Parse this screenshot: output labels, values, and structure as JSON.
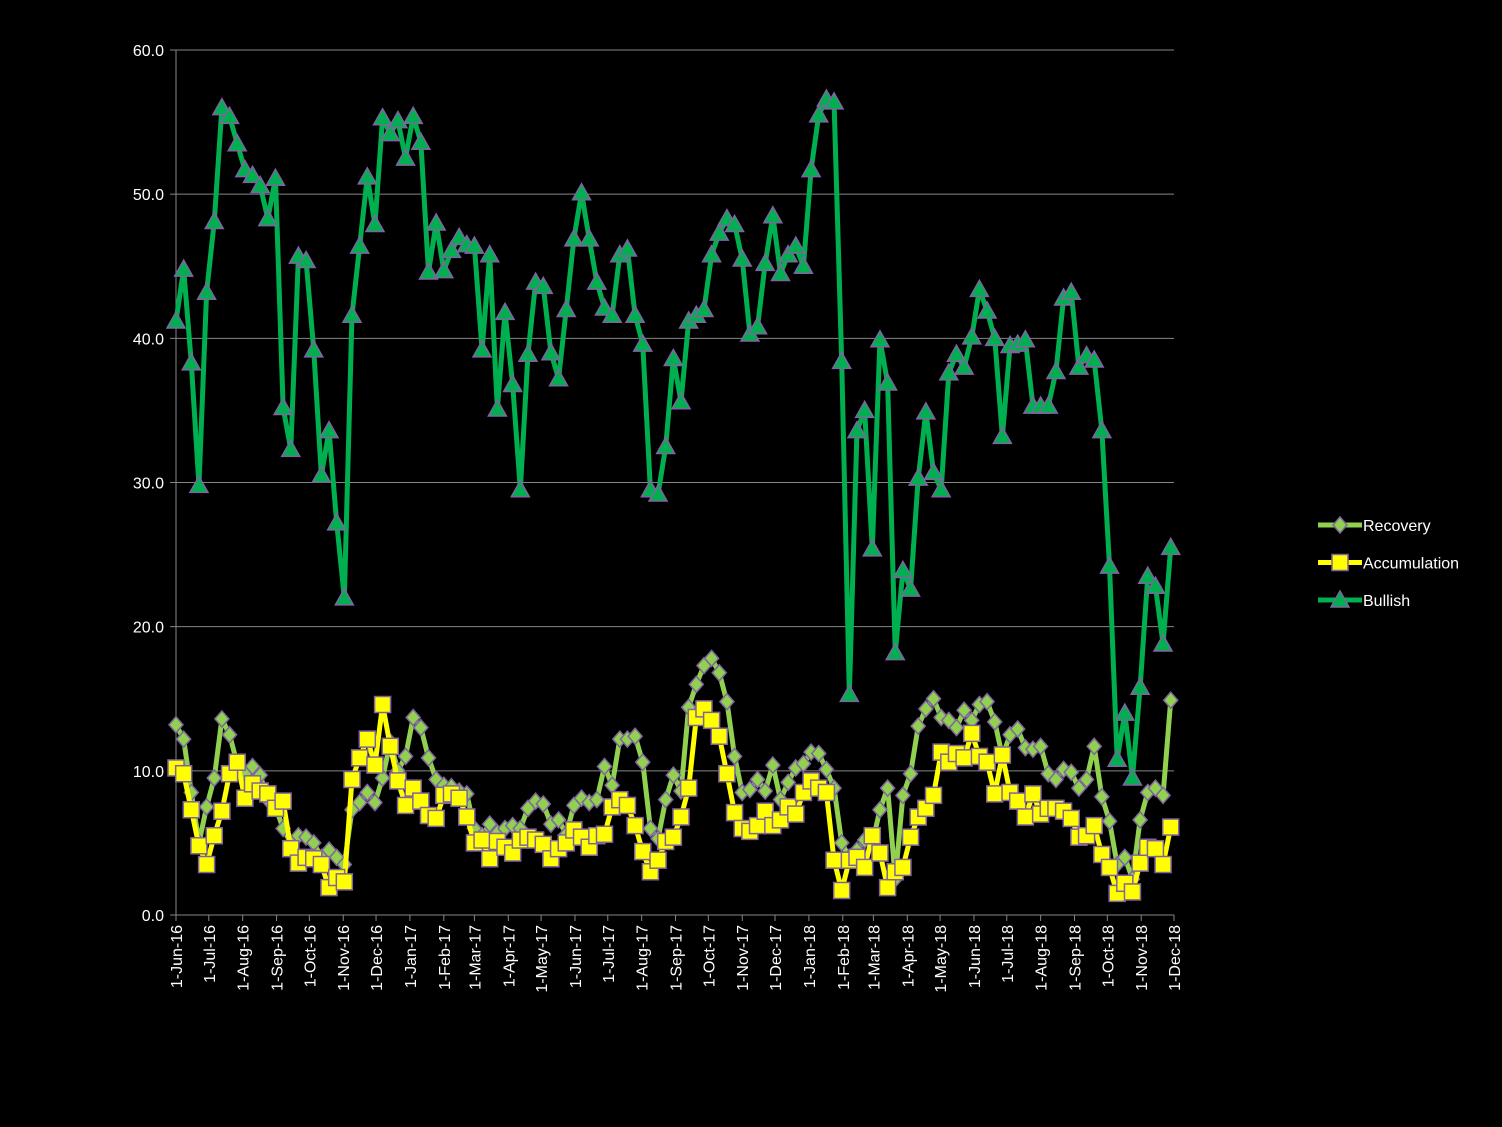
{
  "chart_data": {
    "type": "line",
    "x": [
      "2016-06-01",
      "2016-06-08",
      "2016-06-15",
      "2016-06-22",
      "2016-06-29",
      "2016-07-06",
      "2016-07-13",
      "2016-07-20",
      "2016-07-27",
      "2016-08-03",
      "2016-08-10",
      "2016-08-17",
      "2016-08-24",
      "2016-08-31",
      "2016-09-07",
      "2016-09-14",
      "2016-09-21",
      "2016-09-28",
      "2016-10-05",
      "2016-10-12",
      "2016-10-19",
      "2016-10-26",
      "2016-11-02",
      "2016-11-09",
      "2016-11-16",
      "2016-11-23",
      "2016-11-30",
      "2016-12-07",
      "2016-12-14",
      "2016-12-21",
      "2016-12-28",
      "2017-01-04",
      "2017-01-11",
      "2017-01-18",
      "2017-01-25",
      "2017-02-01",
      "2017-02-08",
      "2017-02-15",
      "2017-02-22",
      "2017-03-01",
      "2017-03-08",
      "2017-03-15",
      "2017-03-22",
      "2017-03-29",
      "2017-04-05",
      "2017-04-12",
      "2017-04-19",
      "2017-04-26",
      "2017-05-03",
      "2017-05-10",
      "2017-05-17",
      "2017-05-24",
      "2017-05-31",
      "2017-06-07",
      "2017-06-14",
      "2017-06-21",
      "2017-06-28",
      "2017-07-05",
      "2017-07-12",
      "2017-07-19",
      "2017-07-26",
      "2017-08-02",
      "2017-08-09",
      "2017-08-16",
      "2017-08-23",
      "2017-08-30",
      "2017-09-06",
      "2017-09-13",
      "2017-09-20",
      "2017-09-27",
      "2017-10-04",
      "2017-10-11",
      "2017-10-18",
      "2017-10-25",
      "2017-11-01",
      "2017-11-08",
      "2017-11-15",
      "2017-11-22",
      "2017-11-29",
      "2017-12-06",
      "2017-12-13",
      "2017-12-20",
      "2017-12-27",
      "2018-01-03",
      "2018-01-10",
      "2018-01-17",
      "2018-01-24",
      "2018-01-31",
      "2018-02-07",
      "2018-02-14",
      "2018-02-21",
      "2018-02-28",
      "2018-03-07",
      "2018-03-14",
      "2018-03-21",
      "2018-03-28",
      "2018-04-04",
      "2018-04-11",
      "2018-04-18",
      "2018-04-25",
      "2018-05-02",
      "2018-05-09",
      "2018-05-16",
      "2018-05-23",
      "2018-05-30",
      "2018-06-06",
      "2018-06-13",
      "2018-06-20",
      "2018-06-27",
      "2018-07-04",
      "2018-07-11",
      "2018-07-18",
      "2018-07-25",
      "2018-08-01",
      "2018-08-08",
      "2018-08-15",
      "2018-08-22",
      "2018-08-29",
      "2018-09-05",
      "2018-09-12",
      "2018-09-19",
      "2018-09-26",
      "2018-10-03",
      "2018-10-10",
      "2018-10-17",
      "2018-10-24",
      "2018-10-31",
      "2018-11-07",
      "2018-11-14",
      "2018-11-21",
      "2018-11-28"
    ],
    "series": [
      {
        "name": "Recovery",
        "color": "#92d050",
        "marker": "diamond",
        "values": [
          13.2,
          12.2,
          8.5,
          5.0,
          7.5,
          9.5,
          13.6,
          12.5,
          10.5,
          9.8,
          10.3,
          9.7,
          8.0,
          7.5,
          6.0,
          5.0,
          5.5,
          5.4,
          5.0,
          4.0,
          4.5,
          4.0,
          3.5,
          7.3,
          7.8,
          8.5,
          7.8,
          9.5,
          12.0,
          10.0,
          11.0,
          13.7,
          13.0,
          10.9,
          9.4,
          9.0,
          8.9,
          8.6,
          8.4,
          6.0,
          5.5,
          6.3,
          5.7,
          6.0,
          6.2,
          6.0,
          7.4,
          7.9,
          7.7,
          6.3,
          6.6,
          5.6,
          7.6,
          8.1,
          7.8,
          8.0,
          10.3,
          9.0,
          12.2,
          12.2,
          12.4,
          10.6,
          6.0,
          5.3,
          8.0,
          9.7,
          8.6,
          14.4,
          16.0,
          17.3,
          17.8,
          16.8,
          14.8,
          11.0,
          8.5,
          8.7,
          9.4,
          8.6,
          10.4,
          8.0,
          9.2,
          10.2,
          10.5,
          11.3,
          11.2,
          10.1,
          8.8,
          5.0,
          4.0,
          4.5,
          5.2,
          5.0,
          7.3,
          8.8,
          2.5,
          8.3,
          9.8,
          13.1,
          14.3,
          15.0,
          13.7,
          13.5,
          13.0,
          14.2,
          13.5,
          14.6,
          14.8,
          13.4,
          11.0,
          12.5,
          12.9,
          11.6,
          11.5,
          11.7,
          9.8,
          9.4,
          10.1,
          9.9,
          8.8,
          9.4,
          11.7,
          8.2,
          6.5,
          3.5,
          4.0,
          2.5,
          6.6,
          8.5,
          8.8,
          8.3,
          14.9
        ]
      },
      {
        "name": "Accumulation",
        "color": "#ffff00",
        "marker": "square",
        "values": [
          10.2,
          9.8,
          7.3,
          4.8,
          3.5,
          5.5,
          7.2,
          9.8,
          10.6,
          8.1,
          9.1,
          8.6,
          8.4,
          7.4,
          7.9,
          4.6,
          3.6,
          4.0,
          3.9,
          3.5,
          1.9,
          2.6,
          2.3,
          9.4,
          10.9,
          12.2,
          10.4,
          14.6,
          11.7,
          9.3,
          7.6,
          8.8,
          7.9,
          6.9,
          6.7,
          8.3,
          8.4,
          8.1,
          6.8,
          5.0,
          5.2,
          3.9,
          5.1,
          4.7,
          4.3,
          5.2,
          5.4,
          5.2,
          4.9,
          3.9,
          4.6,
          5.0,
          5.9,
          5.4,
          4.7,
          5.5,
          5.6,
          7.5,
          8.0,
          7.6,
          6.2,
          4.4,
          3.0,
          3.8,
          5.1,
          5.4,
          6.8,
          8.8,
          13.7,
          14.3,
          13.5,
          12.4,
          9.8,
          7.1,
          6.0,
          5.8,
          6.2,
          7.2,
          6.2,
          6.6,
          7.5,
          7.0,
          8.5,
          9.3,
          8.8,
          8.5,
          3.8,
          1.7,
          3.8,
          4.0,
          3.3,
          5.5,
          4.3,
          1.9,
          3.0,
          3.3,
          5.4,
          6.8,
          7.4,
          8.3,
          11.3,
          10.6,
          11.2,
          10.9,
          12.6,
          11.0,
          10.6,
          8.4,
          11.1,
          8.5,
          7.9,
          6.8,
          8.4,
          7.0,
          7.4,
          7.4,
          7.2,
          6.7,
          5.4,
          5.5,
          6.2,
          4.2,
          3.3,
          1.5,
          2.2,
          1.6,
          3.6,
          4.7,
          4.6,
          3.5,
          6.1
        ]
      },
      {
        "name": "Bullish",
        "color": "#00b050",
        "marker": "triangle",
        "values": [
          41.2,
          44.8,
          38.3,
          29.8,
          43.2,
          48.1,
          56.0,
          55.4,
          53.5,
          51.7,
          51.3,
          50.6,
          48.3,
          51.1,
          35.2,
          32.3,
          45.7,
          45.4,
          39.2,
          30.5,
          33.6,
          27.2,
          22.0,
          41.6,
          46.4,
          51.2,
          47.9,
          55.3,
          54.2,
          55.1,
          52.5,
          55.4,
          53.6,
          44.6,
          48.0,
          44.7,
          46.1,
          47.0,
          46.5,
          46.4,
          39.2,
          45.8,
          35.1,
          41.8,
          36.8,
          29.5,
          38.9,
          43.9,
          43.6,
          39.0,
          37.2,
          42.0,
          46.9,
          50.1,
          46.9,
          43.9,
          42.1,
          41.6,
          45.8,
          46.2,
          41.6,
          39.6,
          29.5,
          29.2,
          32.5,
          38.6,
          35.6,
          41.2,
          41.6,
          42.0,
          45.8,
          47.3,
          48.3,
          47.9,
          45.5,
          40.3,
          40.8,
          45.2,
          48.5,
          44.5,
          45.8,
          46.4,
          45.0,
          51.7,
          55.5,
          56.6,
          56.4,
          38.4,
          15.3,
          33.6,
          35.0,
          25.4,
          39.9,
          36.9,
          18.2,
          23.9,
          22.6,
          30.3,
          34.9,
          30.7,
          29.5,
          37.6,
          38.9,
          38.0,
          40.1,
          43.4,
          41.9,
          40.0,
          33.2,
          39.5,
          39.6,
          39.9,
          35.3,
          35.3,
          35.3,
          37.7,
          42.8,
          43.2,
          38.0,
          38.8,
          38.5,
          33.6,
          24.2,
          10.8,
          14.0,
          9.5,
          15.8,
          23.5,
          22.8,
          18.8,
          25.5
        ]
      }
    ],
    "xlim": [
      "2016-06-01",
      "2018-12-01"
    ],
    "xticks": [
      {
        "value": "2016-06-01",
        "label": "1-Jun-16"
      },
      {
        "value": "2016-07-01",
        "label": "1-Jul-16"
      },
      {
        "value": "2016-08-01",
        "label": "1-Aug-16"
      },
      {
        "value": "2016-09-01",
        "label": "1-Sep-16"
      },
      {
        "value": "2016-10-01",
        "label": "1-Oct-16"
      },
      {
        "value": "2016-11-01",
        "label": "1-Nov-16"
      },
      {
        "value": "2016-12-01",
        "label": "1-Dec-16"
      },
      {
        "value": "2017-01-01",
        "label": "1-Jan-17"
      },
      {
        "value": "2017-02-01",
        "label": "1-Feb-17"
      },
      {
        "value": "2017-03-01",
        "label": "1-Mar-17"
      },
      {
        "value": "2017-04-01",
        "label": "1-Apr-17"
      },
      {
        "value": "2017-05-01",
        "label": "1-May-17"
      },
      {
        "value": "2017-06-01",
        "label": "1-Jun-17"
      },
      {
        "value": "2017-07-01",
        "label": "1-Jul-17"
      },
      {
        "value": "2017-08-01",
        "label": "1-Aug-17"
      },
      {
        "value": "2017-09-01",
        "label": "1-Sep-17"
      },
      {
        "value": "2017-10-01",
        "label": "1-Oct-17"
      },
      {
        "value": "2017-11-01",
        "label": "1-Nov-17"
      },
      {
        "value": "2017-12-01",
        "label": "1-Dec-17"
      },
      {
        "value": "2018-01-01",
        "label": "1-Jan-18"
      },
      {
        "value": "2018-02-01",
        "label": "1-Feb-18"
      },
      {
        "value": "2018-03-01",
        "label": "1-Mar-18"
      },
      {
        "value": "2018-04-01",
        "label": "1-Apr-18"
      },
      {
        "value": "2018-05-01",
        "label": "1-May-18"
      },
      {
        "value": "2018-06-01",
        "label": "1-Jun-18"
      },
      {
        "value": "2018-07-01",
        "label": "1-Jul-18"
      },
      {
        "value": "2018-08-01",
        "label": "1-Aug-18"
      },
      {
        "value": "2018-09-01",
        "label": "1-Sep-18"
      },
      {
        "value": "2018-10-01",
        "label": "1-Oct-18"
      },
      {
        "value": "2018-11-01",
        "label": "1-Nov-18"
      },
      {
        "value": "2018-12-01",
        "label": "1-Dec-18"
      }
    ],
    "ylim": [
      0,
      60
    ],
    "yticks": [
      {
        "value": 0,
        "label": "0.0"
      },
      {
        "value": 10,
        "label": "10.0"
      },
      {
        "value": 20,
        "label": "20.0"
      },
      {
        "value": 30,
        "label": "30.0"
      },
      {
        "value": 40,
        "label": "40.0"
      },
      {
        "value": 50,
        "label": "50.0"
      },
      {
        "value": 60,
        "label": "60.0"
      }
    ],
    "grid": true,
    "legend": "right"
  }
}
